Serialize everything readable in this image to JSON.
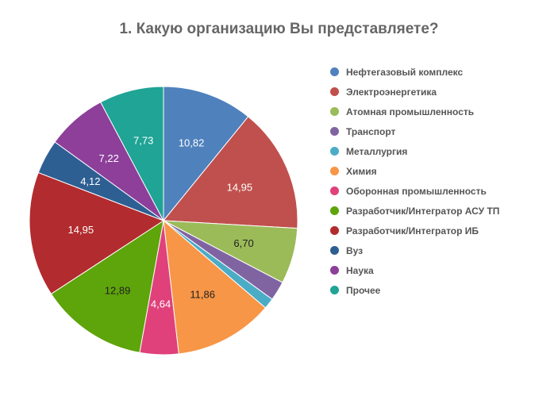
{
  "chart_data": {
    "type": "pie",
    "title": "1. Какую организацию Вы представляете?",
    "legend_position": "right",
    "slices": [
      {
        "name": "Нефтегазовый комплекс",
        "value": 10.82,
        "label": "10,82",
        "color": "#4f81bd",
        "label_color": "#ffffff"
      },
      {
        "name": "Электроэнергетика",
        "value": 14.95,
        "label": "14,95",
        "color": "#c0504d",
        "label_color": "#ffffff"
      },
      {
        "name": "Атомная промышленность",
        "value": 6.7,
        "label": "6,70",
        "color": "#9bbb59",
        "label_color": "#222222"
      },
      {
        "name": "Транспорт",
        "value": 2.32,
        "label": "",
        "color": "#8064a2",
        "label_color": "#ffffff"
      },
      {
        "name": "Металлургия",
        "value": 1.29,
        "label": "",
        "color": "#4bacc6",
        "label_color": "#ffffff"
      },
      {
        "name": "Химия",
        "value": 11.86,
        "label": "11,86",
        "color": "#f79646",
        "label_color": "#222222"
      },
      {
        "name": "Оборонная промышленность",
        "value": 4.64,
        "label": "4,64",
        "color": "#e0417b",
        "label_color": "#ffffff"
      },
      {
        "name": "Разработчик/Интегратор АСУ ТП",
        "value": 12.89,
        "label": "12,89",
        "color": "#5ea40b",
        "label_color": "#222222"
      },
      {
        "name": "Разработчик/Интегратор ИБ",
        "value": 14.95,
        "label": "14,95",
        "color": "#b22b2e",
        "label_color": "#ffffff"
      },
      {
        "name": "Вуз",
        "value": 4.12,
        "label": "4,12",
        "color": "#2e5f93",
        "label_color": "#ffffff"
      },
      {
        "name": "Наука",
        "value": 7.22,
        "label": "7,22",
        "color": "#8d3f9a",
        "label_color": "#ffffff"
      },
      {
        "name": "Прочее",
        "value": 7.73,
        "label": "7,73",
        "color": "#1fa495",
        "label_color": "#ffffff"
      }
    ]
  }
}
